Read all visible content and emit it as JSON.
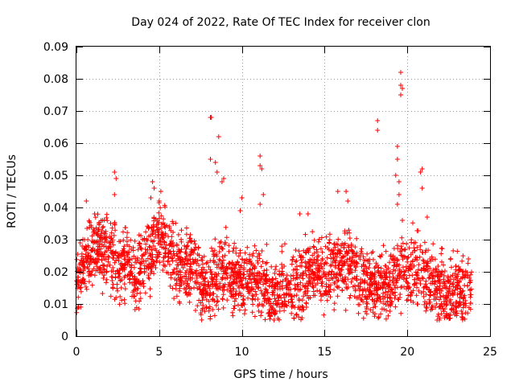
{
  "chart_data": {
    "type": "scatter",
    "title": "Day 024 of 2022, Rate Of TEC Index for receiver clon",
    "xlabel": "GPS time / hours",
    "ylabel": "ROTI / TECUs",
    "xlim": [
      0,
      25
    ],
    "ylim": [
      0,
      0.09
    ],
    "x_ticks": [
      0,
      5,
      10,
      15,
      20,
      25
    ],
    "x_tick_labels": [
      "0",
      "5",
      "10",
      "15",
      "20",
      "25"
    ],
    "y_ticks": [
      0,
      0.01,
      0.02,
      0.03,
      0.04,
      0.05,
      0.06,
      0.07,
      0.08,
      0.09
    ],
    "y_tick_labels": [
      "0",
      "0.01",
      "0.02",
      "0.03",
      "0.04",
      "0.05",
      "0.06",
      "0.07",
      "0.08",
      "0.09"
    ],
    "grid": true,
    "marker": "+",
    "series": [
      {
        "name": "ROTI",
        "color": "#ff0000",
        "profile": [
          [
            0,
            0.017
          ],
          [
            0.5,
            0.024
          ],
          [
            1.0,
            0.027
          ],
          [
            1.5,
            0.026
          ],
          [
            2.0,
            0.027
          ],
          [
            2.5,
            0.021
          ],
          [
            3.0,
            0.023
          ],
          [
            3.5,
            0.018
          ],
          [
            4.0,
            0.022
          ],
          [
            4.5,
            0.027
          ],
          [
            5.0,
            0.031
          ],
          [
            5.5,
            0.028
          ],
          [
            6.0,
            0.022
          ],
          [
            6.5,
            0.021
          ],
          [
            7.0,
            0.021
          ],
          [
            7.5,
            0.017
          ],
          [
            8.0,
            0.015
          ],
          [
            8.5,
            0.018
          ],
          [
            9.0,
            0.021
          ],
          [
            9.5,
            0.018
          ],
          [
            10.0,
            0.017
          ],
          [
            10.5,
            0.018
          ],
          [
            11.0,
            0.018
          ],
          [
            11.5,
            0.014
          ],
          [
            12.0,
            0.013
          ],
          [
            12.5,
            0.015
          ],
          [
            13.0,
            0.015
          ],
          [
            13.5,
            0.016
          ],
          [
            14.0,
            0.02
          ],
          [
            14.5,
            0.021
          ],
          [
            15.0,
            0.019
          ],
          [
            15.5,
            0.02
          ],
          [
            16.0,
            0.023
          ],
          [
            16.5,
            0.022
          ],
          [
            17.0,
            0.018
          ],
          [
            17.5,
            0.016
          ],
          [
            18.0,
            0.015
          ],
          [
            18.5,
            0.016
          ],
          [
            19.0,
            0.017
          ],
          [
            19.5,
            0.02
          ],
          [
            20.0,
            0.021
          ],
          [
            20.5,
            0.02
          ],
          [
            21.0,
            0.02
          ],
          [
            21.5,
            0.016
          ],
          [
            22.0,
            0.014
          ],
          [
            22.5,
            0.014
          ],
          [
            23.0,
            0.014
          ],
          [
            23.5,
            0.014
          ],
          [
            23.9,
            0.016
          ]
        ],
        "outliers": [
          [
            0.6,
            0.042
          ],
          [
            1.1,
            0.038
          ],
          [
            2.3,
            0.051
          ],
          [
            2.4,
            0.049
          ],
          [
            2.3,
            0.044
          ],
          [
            4.6,
            0.048
          ],
          [
            4.7,
            0.046
          ],
          [
            4.5,
            0.043
          ],
          [
            5.1,
            0.045
          ],
          [
            5.0,
            0.042
          ],
          [
            8.1,
            0.068
          ],
          [
            8.15,
            0.068
          ],
          [
            8.1,
            0.055
          ],
          [
            8.6,
            0.062
          ],
          [
            8.4,
            0.054
          ],
          [
            8.5,
            0.051
          ],
          [
            8.9,
            0.049
          ],
          [
            8.8,
            0.048
          ],
          [
            9.9,
            0.039
          ],
          [
            10.0,
            0.043
          ],
          [
            11.1,
            0.056
          ],
          [
            11.1,
            0.053
          ],
          [
            11.2,
            0.052
          ],
          [
            11.1,
            0.041
          ],
          [
            11.3,
            0.044
          ],
          [
            13.5,
            0.038
          ],
          [
            14.0,
            0.038
          ],
          [
            15.8,
            0.045
          ],
          [
            16.3,
            0.045
          ],
          [
            16.4,
            0.042
          ],
          [
            18.2,
            0.067
          ],
          [
            18.2,
            0.064
          ],
          [
            19.4,
            0.059
          ],
          [
            19.4,
            0.055
          ],
          [
            19.3,
            0.05
          ],
          [
            19.5,
            0.048
          ],
          [
            19.6,
            0.082
          ],
          [
            19.6,
            0.078
          ],
          [
            19.7,
            0.077
          ],
          [
            19.6,
            0.075
          ],
          [
            19.5,
            0.044
          ],
          [
            19.4,
            0.041
          ],
          [
            19.7,
            0.036
          ],
          [
            20.8,
            0.051
          ],
          [
            20.9,
            0.052
          ],
          [
            20.9,
            0.046
          ],
          [
            21.2,
            0.037
          ],
          [
            0.1,
            0.009
          ],
          [
            7.2,
            0.008
          ],
          [
            12.0,
            0.008
          ],
          [
            21.8,
            0.005
          ],
          [
            23.3,
            0.006
          ],
          [
            13.9,
            0.009
          ]
        ]
      }
    ]
  }
}
